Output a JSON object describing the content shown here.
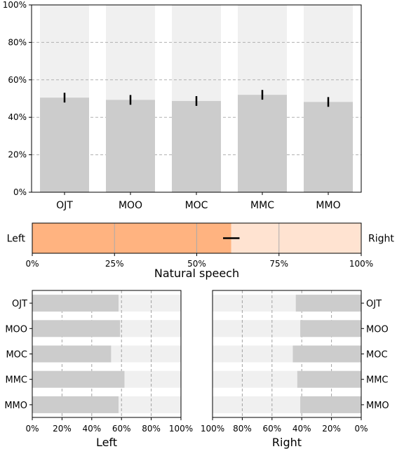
{
  "chart_data": [
    {
      "type": "bar",
      "categories": [
        "OJT",
        "MOO",
        "MOC",
        "MMC",
        "MMO"
      ],
      "values": [
        50.5,
        49.3,
        48.7,
        52.0,
        48.2
      ],
      "error": [
        2.6,
        2.6,
        2.6,
        2.6,
        2.6
      ],
      "ylim": [
        0,
        100
      ],
      "yticks": [
        "0%",
        "20%",
        "40%",
        "60%",
        "80%",
        "100%"
      ],
      "grid": "horizontal dashed",
      "colors": {
        "bar": "#cccccc",
        "background_bar": "#f0f0f0",
        "error": "#000000"
      }
    },
    {
      "type": "bar",
      "orientation": "horizontal-stacked",
      "xlabel": "Natural speech",
      "left_label": "Left",
      "right_label": "Right",
      "value": 60.5,
      "error": 2.5,
      "xlim": [
        0,
        100
      ],
      "xticks": [
        "0%",
        "25%",
        "50%",
        "75%",
        "100%"
      ],
      "colors": {
        "left": "#ffb380",
        "right": "#ffe3d1",
        "grid": "#aaaaaa"
      }
    },
    {
      "type": "bar",
      "orientation": "horizontal",
      "xlabel": "Left",
      "categories": [
        "OJT",
        "MOO",
        "MOC",
        "MMC",
        "MMO"
      ],
      "values": [
        58,
        59,
        53,
        62,
        58
      ],
      "xlim": [
        0,
        100
      ],
      "xticks": [
        "0%",
        "20%",
        "40%",
        "60%",
        "80%",
        "100%"
      ]
    },
    {
      "type": "bar",
      "orientation": "horizontal-reversed",
      "xlabel": "Right",
      "categories": [
        "OJT",
        "MOO",
        "MOC",
        "MMC",
        "MMO"
      ],
      "values": [
        44,
        41,
        46,
        43,
        41
      ],
      "xlim": [
        100,
        0
      ],
      "xticks": [
        "100%",
        "80%",
        "60%",
        "40%",
        "20%",
        "0%"
      ]
    }
  ]
}
